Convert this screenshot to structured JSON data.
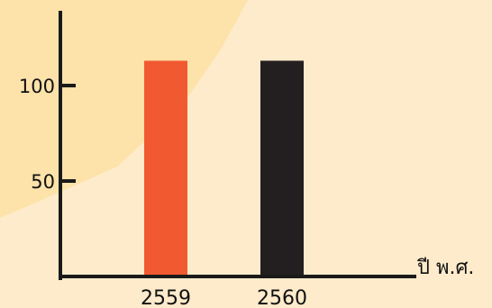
{
  "colors": {
    "background": "#fdebcb",
    "highlight": "#fde2a9",
    "axis": "#1a1a1a"
  },
  "chart_data": {
    "type": "bar",
    "title": "",
    "xlabel": "ปี พ.ศ.",
    "ylabel": "",
    "categories": [
      "2559",
      "2560"
    ],
    "values": [
      113,
      113
    ],
    "bar_colors": [
      "#f15a31",
      "#231f20"
    ],
    "yticks": [
      50,
      100
    ],
    "ylim": [
      0,
      137
    ],
    "grid": false,
    "legend": "none"
  }
}
